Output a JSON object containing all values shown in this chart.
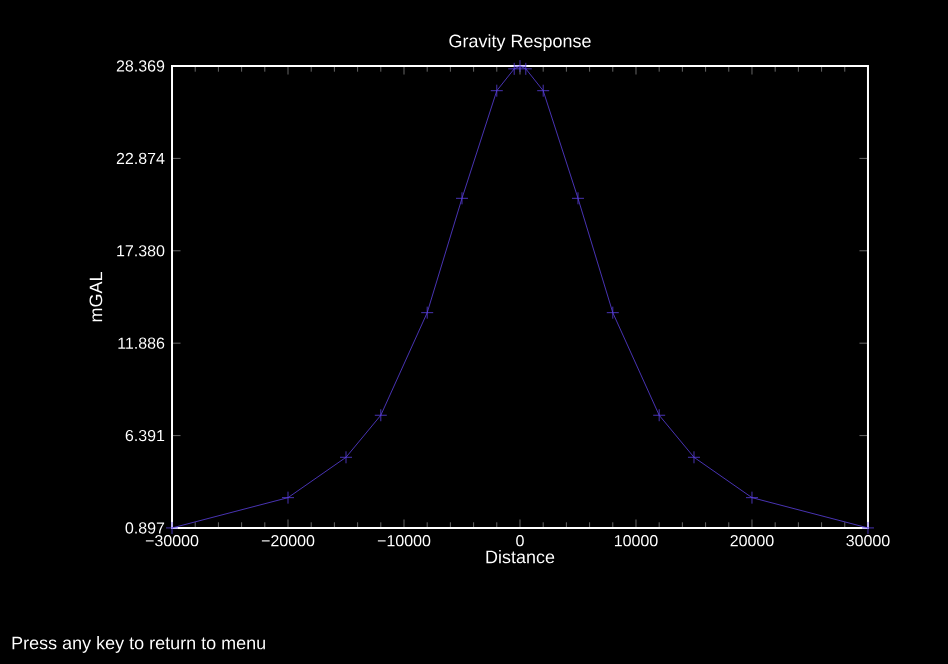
{
  "chart_data": {
    "type": "line",
    "title": "Gravity Response",
    "xlabel": "Distance",
    "ylabel": "mGAL",
    "x": [
      -30000,
      -20000,
      -15000,
      -12000,
      -8000,
      -5000,
      -2000,
      -500,
      0,
      500,
      2000,
      5000,
      8000,
      12000,
      15000,
      20000,
      30000
    ],
    "series": [
      {
        "color": "#5a40e0",
        "values": [
          0.9,
          2.7,
          5.1,
          7.6,
          13.7,
          20.5,
          26.9,
          28.2,
          28.36,
          28.2,
          26.9,
          20.5,
          13.7,
          7.6,
          5.1,
          2.7,
          0.9
        ]
      }
    ],
    "marker": "cross",
    "xlim": [
      -30000,
      30000
    ],
    "ylim": [
      0.897,
      28.369
    ],
    "xticks": [
      {
        "value": -30000,
        "label": "−30000"
      },
      {
        "value": -20000,
        "label": "−20000"
      },
      {
        "value": -10000,
        "label": "−10000"
      },
      0,
      10000,
      20000,
      30000
    ],
    "yticks": [
      0.897,
      6.391,
      11.886,
      {
        "value": 17.38,
        "label": "17.380"
      },
      22.874,
      28.369
    ],
    "annotations": [
      "Press any key to return to menu"
    ]
  }
}
